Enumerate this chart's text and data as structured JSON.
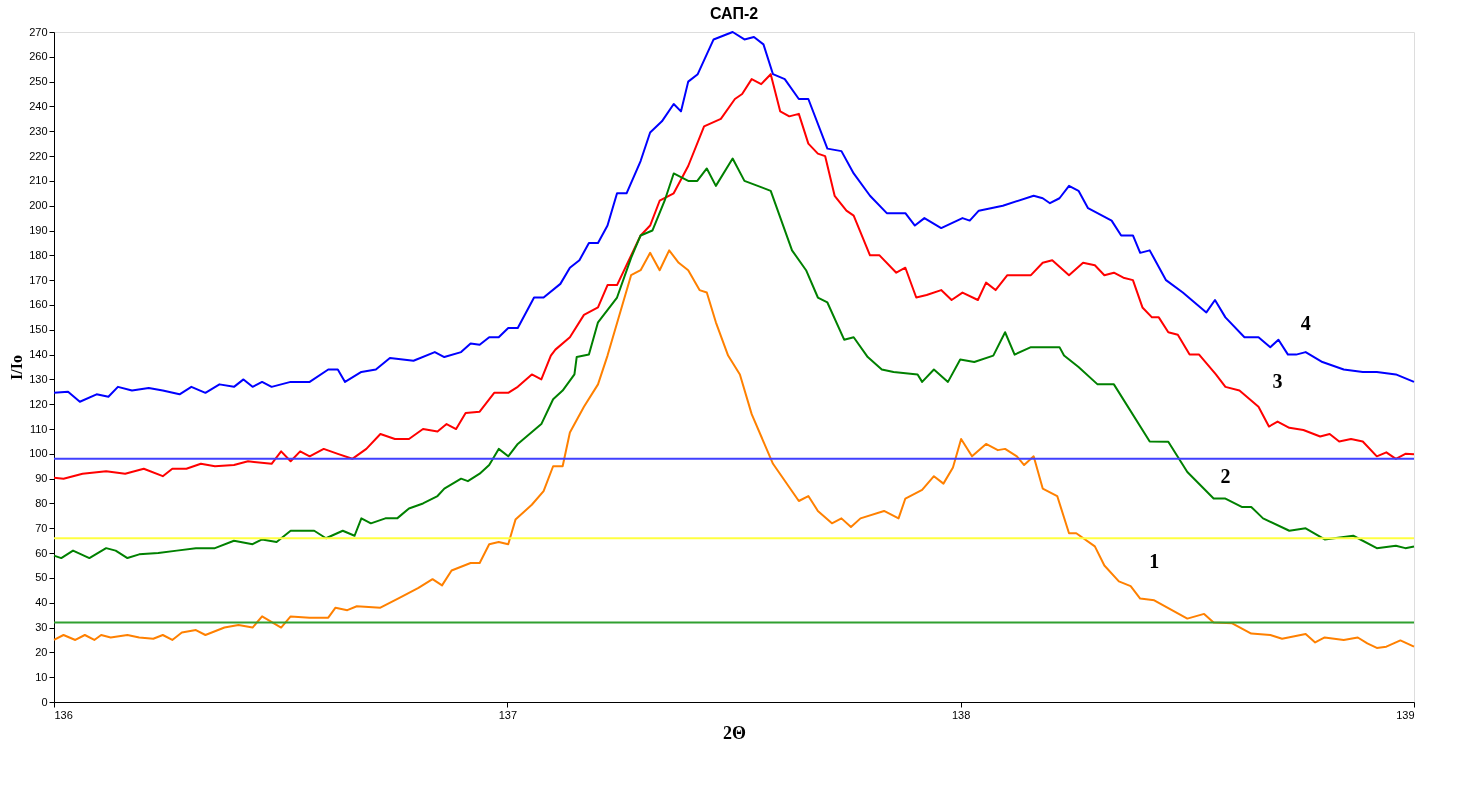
{
  "chart_data": {
    "type": "line",
    "title": "САП-2",
    "xlabel": "2Θ",
    "ylabel": "I/Io",
    "xlim": [
      136,
      139
    ],
    "xticks": [
      136,
      137,
      138,
      139
    ],
    "ylim": [
      0,
      270
    ],
    "yticks": [
      0,
      10,
      20,
      30,
      40,
      50,
      60,
      70,
      80,
      90,
      100,
      110,
      120,
      130,
      140,
      150,
      160,
      170,
      180,
      190,
      200,
      210,
      220,
      230,
      240,
      250,
      260,
      270
    ],
    "grid": false,
    "legend": false,
    "marker": "none",
    "line_style": "solid",
    "ref_lines": [
      {
        "axis": "y",
        "value": 98,
        "color": "#4040ff"
      },
      {
        "axis": "y",
        "value": 66,
        "color": "#ffff40"
      },
      {
        "axis": "y",
        "value": 32,
        "color": "#30a030"
      }
    ],
    "series": [
      {
        "name": "4",
        "color": "#0000ff",
        "x": [
          136.0,
          136.031,
          136.057,
          136.094,
          136.12,
          136.141,
          136.172,
          136.209,
          136.24,
          136.277,
          136.303,
          136.334,
          136.365,
          136.397,
          136.418,
          136.438,
          136.459,
          136.48,
          136.522,
          136.564,
          136.605,
          136.626,
          136.642,
          136.678,
          136.71,
          136.741,
          136.793,
          136.84,
          136.861,
          136.898,
          136.919,
          136.939,
          136.96,
          136.981,
          137.002,
          137.023,
          137.059,
          137.08,
          137.117,
          137.138,
          137.159,
          137.18,
          137.2,
          137.221,
          137.242,
          137.263,
          137.294,
          137.315,
          137.341,
          137.367,
          137.383,
          137.399,
          137.42,
          137.455,
          137.497,
          137.523,
          137.544,
          137.565,
          137.586,
          137.612,
          137.643,
          137.664,
          137.706,
          137.737,
          137.764,
          137.8,
          137.837,
          137.878,
          137.899,
          137.92,
          137.957,
          138.004,
          138.02,
          138.04,
          138.093,
          138.161,
          138.181,
          138.197,
          138.218,
          138.239,
          138.26,
          138.281,
          138.333,
          138.354,
          138.38,
          138.396,
          138.417,
          138.453,
          138.49,
          138.542,
          138.561,
          138.584,
          138.626,
          138.657,
          138.683,
          138.701,
          138.722,
          138.74,
          138.761,
          138.798,
          138.845,
          138.887,
          138.918,
          138.96,
          139.0
        ],
        "values": [
          124.6,
          125,
          121,
          124,
          123,
          127,
          125.5,
          126.5,
          125.5,
          124,
          127,
          124.6,
          128,
          127,
          130,
          127,
          129,
          127,
          129,
          129,
          134,
          134,
          129,
          133,
          134,
          138.6,
          137.5,
          141,
          139,
          141,
          144.5,
          144,
          147,
          147,
          150.7,
          150.7,
          163,
          163,
          168.5,
          175,
          178,
          185,
          185,
          192,
          205,
          205,
          218,
          229.5,
          234,
          241,
          238,
          250,
          253,
          267,
          270,
          267,
          268,
          265,
          253,
          251,
          243,
          243,
          223,
          222,
          213,
          204,
          197,
          197,
          192,
          195,
          191,
          195,
          194,
          198,
          200,
          204,
          203,
          201,
          203,
          208,
          206,
          199,
          194,
          188,
          188,
          181,
          182,
          170,
          165,
          157,
          162,
          155,
          147,
          147,
          143,
          146,
          140,
          140,
          141,
          137,
          134,
          133,
          133,
          132,
          129
        ]
      },
      {
        "name": "3",
        "color": "#ff0000",
        "x": [
          136.0,
          136.021,
          136.063,
          136.115,
          136.157,
          136.198,
          136.24,
          136.261,
          136.292,
          136.324,
          136.355,
          136.397,
          136.428,
          136.48,
          136.501,
          136.522,
          136.543,
          136.564,
          136.595,
          136.626,
          136.658,
          136.689,
          136.72,
          136.752,
          136.783,
          136.814,
          136.846,
          136.866,
          136.887,
          136.908,
          136.939,
          136.971,
          137.002,
          137.023,
          137.054,
          137.075,
          137.096,
          137.106,
          137.138,
          137.169,
          137.2,
          137.221,
          137.242,
          137.294,
          137.315,
          137.336,
          137.367,
          137.399,
          137.434,
          137.471,
          137.502,
          137.518,
          137.539,
          137.56,
          137.581,
          137.602,
          137.622,
          137.643,
          137.664,
          137.685,
          137.701,
          137.722,
          137.748,
          137.764,
          137.8,
          137.821,
          137.858,
          137.878,
          137.902,
          137.925,
          137.957,
          137.98,
          138.004,
          138.038,
          138.056,
          138.077,
          138.103,
          138.155,
          138.181,
          138.202,
          138.239,
          138.27,
          138.296,
          138.317,
          138.338,
          138.359,
          138.38,
          138.401,
          138.422,
          138.437,
          138.458,
          138.479,
          138.505,
          138.526,
          138.563,
          138.584,
          138.615,
          138.657,
          138.68,
          138.699,
          138.725,
          138.756,
          138.793,
          138.814,
          138.835,
          138.861,
          138.887,
          138.918,
          138.939,
          138.96,
          138.981,
          139.0
        ],
        "values": [
          90.4,
          90,
          92,
          93,
          92,
          94,
          91,
          94,
          94,
          96,
          95,
          95.5,
          97,
          96,
          101,
          97,
          101,
          99,
          102,
          100,
          98,
          102,
          108,
          106,
          106,
          110,
          109,
          112,
          110,
          116.5,
          117,
          124.6,
          124.6,
          127,
          132,
          130,
          139.6,
          142,
          147,
          156,
          159,
          168,
          168,
          188,
          192,
          202,
          205,
          216,
          232,
          235,
          243,
          245,
          251,
          249,
          253,
          238,
          236,
          237,
          225,
          221,
          220,
          204,
          198,
          196,
          180,
          180,
          173,
          175,
          163,
          164,
          166,
          162,
          165,
          162,
          169,
          166,
          172,
          172,
          177,
          178,
          172,
          177,
          176,
          172,
          173,
          171,
          170,
          159,
          155,
          155,
          149,
          148,
          140,
          140,
          132,
          127,
          125.5,
          119,
          111,
          113,
          110.5,
          109.6,
          107,
          108,
          105,
          106,
          105,
          99,
          100.6,
          98,
          100,
          99.8
        ]
      },
      {
        "name": "2",
        "color": "#008000",
        "x": [
          136.0,
          136.016,
          136.042,
          136.078,
          136.115,
          136.136,
          136.162,
          136.188,
          136.23,
          136.271,
          136.313,
          136.355,
          136.397,
          136.438,
          136.459,
          136.491,
          136.522,
          136.574,
          136.6,
          136.637,
          136.663,
          136.678,
          136.699,
          136.731,
          136.757,
          136.783,
          136.814,
          136.846,
          136.861,
          136.898,
          136.913,
          136.939,
          136.96,
          136.981,
          137.002,
          137.023,
          137.075,
          137.101,
          137.122,
          137.148,
          137.153,
          137.18,
          137.2,
          137.242,
          137.273,
          137.294,
          137.32,
          137.347,
          137.367,
          137.399,
          137.419,
          137.44,
          137.46,
          137.497,
          137.523,
          137.581,
          137.628,
          137.659,
          137.685,
          137.706,
          137.743,
          137.764,
          137.795,
          137.826,
          137.852,
          137.905,
          137.915,
          137.941,
          137.972,
          137.999,
          138.03,
          138.072,
          138.098,
          138.119,
          138.155,
          138.181,
          138.218,
          138.228,
          138.26,
          138.302,
          138.338,
          138.417,
          138.458,
          138.5,
          138.558,
          138.584,
          138.62,
          138.641,
          138.667,
          138.725,
          138.761,
          138.803,
          138.866,
          138.918,
          138.96,
          138.981,
          139.0
        ],
        "values": [
          59,
          58,
          61,
          58,
          62,
          61,
          58,
          59.5,
          60,
          61,
          62,
          62,
          65,
          63.6,
          65.5,
          64.5,
          69,
          69,
          66,
          69,
          67,
          74,
          72,
          74,
          74,
          78,
          80,
          83,
          86,
          90,
          89,
          92,
          95.5,
          102,
          99,
          104,
          112,
          122,
          125.5,
          132,
          139,
          140,
          153,
          163,
          179,
          188,
          190,
          202,
          213,
          210,
          210,
          215,
          208,
          219,
          210,
          206,
          182,
          174,
          163,
          161,
          146,
          147,
          139,
          134,
          133,
          132,
          129,
          134,
          129,
          138,
          137,
          139.6,
          149,
          140,
          143,
          143,
          143,
          139.6,
          135,
          128,
          128,
          105,
          104.9,
          92.7,
          82,
          82,
          78.6,
          78.6,
          74,
          69,
          70,
          65.5,
          67,
          62,
          63,
          62,
          62.7
        ]
      },
      {
        "name": "1",
        "color": "#ff8000",
        "x": [
          136.0,
          136.021,
          136.047,
          136.068,
          136.089,
          136.104,
          136.125,
          136.162,
          136.188,
          136.219,
          136.24,
          136.261,
          136.282,
          136.313,
          136.334,
          136.376,
          136.407,
          136.438,
          136.459,
          136.501,
          136.522,
          136.564,
          136.605,
          136.621,
          136.647,
          136.668,
          136.72,
          136.762,
          136.804,
          136.835,
          136.856,
          136.877,
          136.919,
          136.939,
          136.96,
          136.981,
          137.002,
          137.018,
          137.054,
          137.08,
          137.101,
          137.122,
          137.138,
          137.169,
          137.2,
          137.221,
          137.273,
          137.294,
          137.315,
          137.336,
          137.357,
          137.378,
          137.399,
          137.424,
          137.44,
          137.46,
          137.487,
          137.513,
          137.539,
          137.586,
          137.643,
          137.664,
          137.685,
          137.716,
          137.737,
          137.758,
          137.779,
          137.831,
          137.863,
          137.878,
          137.915,
          137.941,
          137.962,
          137.983,
          138.001,
          138.025,
          138.056,
          138.082,
          138.098,
          138.124,
          138.14,
          138.161,
          138.181,
          138.213,
          138.239,
          138.255,
          138.296,
          138.317,
          138.349,
          138.375,
          138.396,
          138.427,
          138.5,
          138.537,
          138.558,
          138.599,
          138.641,
          138.683,
          138.709,
          138.761,
          138.782,
          138.803,
          138.845,
          138.876,
          138.897,
          138.918,
          138.939,
          138.97,
          139.0
        ],
        "values": [
          25,
          27,
          25,
          27,
          25,
          27,
          26,
          27,
          26,
          25.5,
          27,
          25,
          28,
          29,
          27,
          30,
          31,
          30,
          34.5,
          30,
          34.5,
          34,
          34,
          38,
          37,
          38.6,
          38,
          42,
          46,
          49.5,
          47,
          53,
          56,
          56,
          63.6,
          64.5,
          63.6,
          73.5,
          79.5,
          85,
          95,
          95,
          108.6,
          119,
          128,
          139.6,
          172,
          174,
          181,
          174,
          182,
          177,
          174,
          166,
          165,
          153,
          139.6,
          132,
          116,
          96,
          81,
          83,
          77,
          72,
          74,
          70.5,
          74,
          77,
          74,
          82,
          85.5,
          91,
          88,
          94.5,
          106,
          99,
          104,
          101.5,
          102,
          99,
          95.5,
          99,
          86,
          83,
          68,
          68,
          62.7,
          55,
          48.6,
          46.7,
          41.7,
          41,
          33.6,
          35.5,
          32,
          31.7,
          27.6,
          27,
          25.5,
          27.4,
          24,
          26,
          25,
          26,
          23.6,
          21.8,
          22.3,
          24.8,
          22.3
        ]
      }
    ]
  }
}
